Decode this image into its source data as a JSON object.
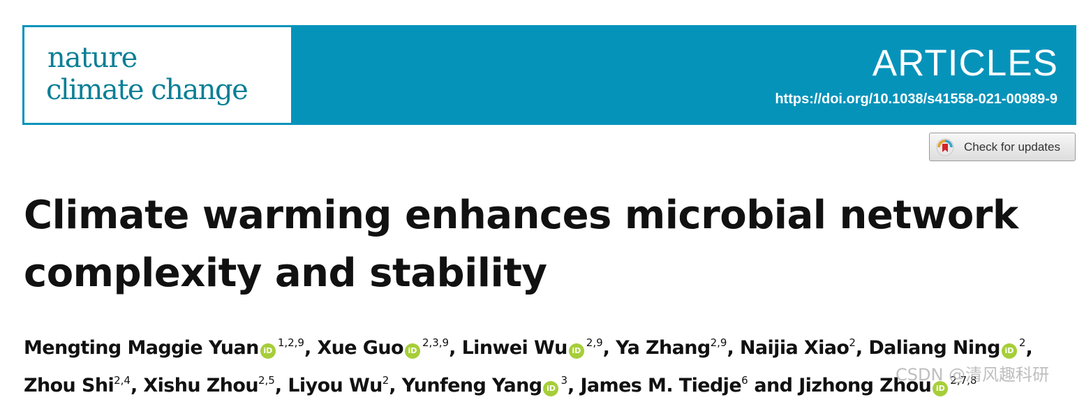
{
  "journal": {
    "name_line1": "nature",
    "name_line2": "climate change",
    "section": "ARTICLES",
    "doi": "https://doi.org/10.1038/s41558-021-00989-9",
    "brand_color": "#0693ba",
    "logo_color": "#0a7f96"
  },
  "check_updates": {
    "label": "Check for updates",
    "icon": "crossmark-icon"
  },
  "article": {
    "title_line1": "Climate warming enhances microbial network",
    "title_line2": "complexity and stability",
    "authors": [
      {
        "name": "Mengting Maggie Yuan",
        "orcid": true,
        "affil": "1,2,9",
        "sep": ", "
      },
      {
        "name": "Xue Guo",
        "orcid": true,
        "affil": "2,3,9",
        "sep": ", "
      },
      {
        "name": "Linwei Wu",
        "orcid": true,
        "affil": "2,9",
        "sep": ", "
      },
      {
        "name": "Ya Zhang",
        "orcid": false,
        "affil": "2,9",
        "sep": ", "
      },
      {
        "name": "Naijia Xiao",
        "orcid": false,
        "affil": "2",
        "sep": ", "
      },
      {
        "name": "Daliang Ning",
        "orcid": true,
        "affil": "2",
        "sep": ","
      },
      {
        "name": "Zhou Shi",
        "orcid": false,
        "affil": "2,4",
        "sep": ", "
      },
      {
        "name": "Xishu Zhou",
        "orcid": false,
        "affil": "2,5",
        "sep": ", "
      },
      {
        "name": "Liyou Wu",
        "orcid": false,
        "affil": "2",
        "sep": ", "
      },
      {
        "name": "Yunfeng Yang",
        "orcid": true,
        "affil": "3",
        "sep": ", "
      },
      {
        "name": "James M. Tiedje",
        "orcid": false,
        "affil": "6",
        "sep": " and "
      },
      {
        "name": "Jizhong Zhou",
        "orcid": true,
        "affil": "2,7,8",
        "sep": ""
      }
    ],
    "orcid_badge": "iD",
    "orcid_color": "#a6ce39"
  },
  "watermark": "CSDN @清风趣科研"
}
